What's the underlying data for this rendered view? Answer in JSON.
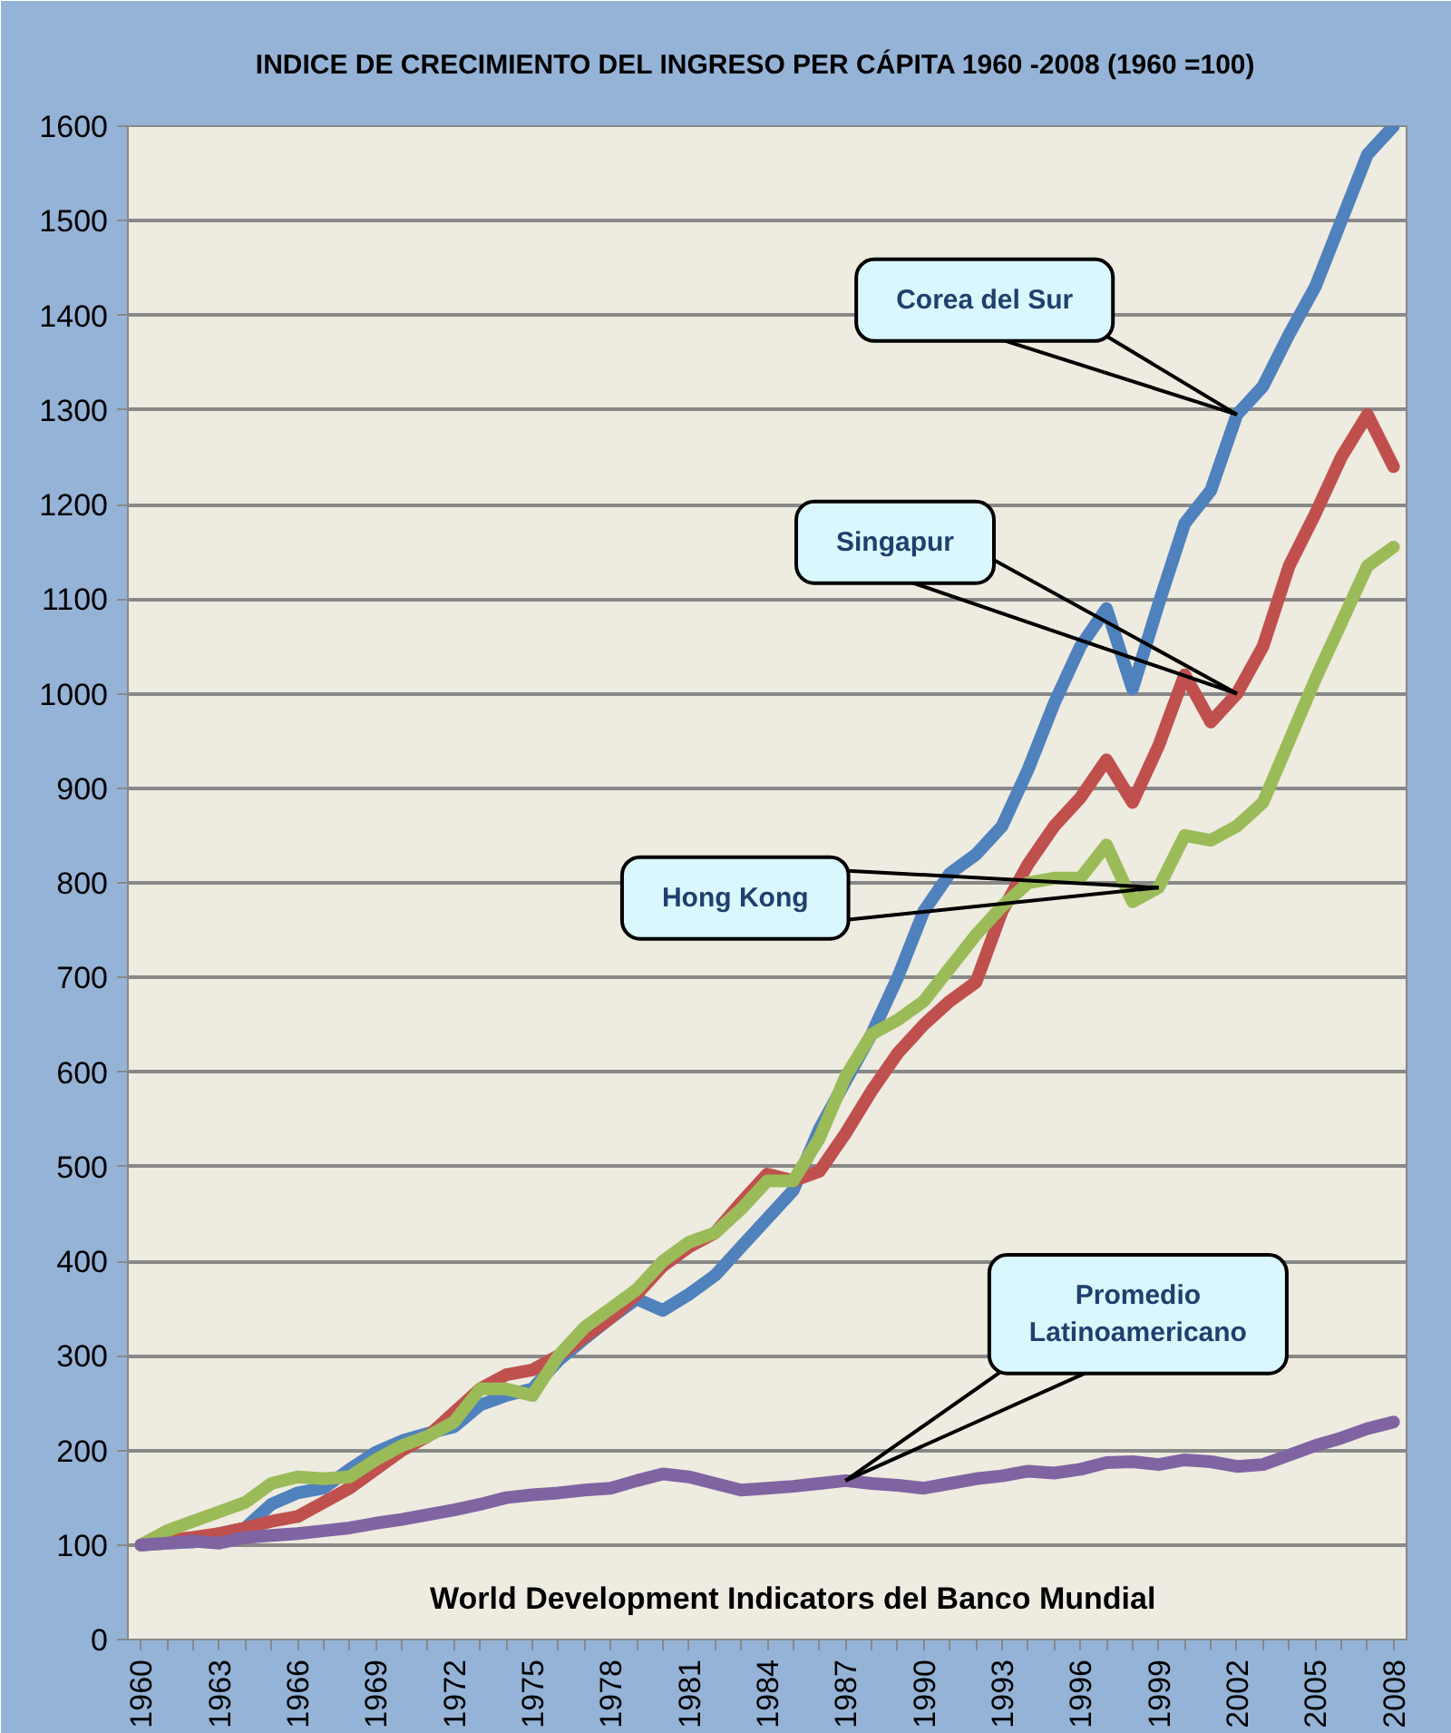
{
  "chart_data": {
    "type": "line",
    "title": "INDICE DE CRECIMIENTO  DEL INGRESO  PER CÁPITA  1960 -2008 (1960 =100)",
    "categories": [
      "1960",
      null,
      null,
      "1963",
      null,
      null,
      "1966",
      null,
      null,
      "1969",
      null,
      null,
      "1972",
      null,
      null,
      "1975",
      null,
      null,
      "1978",
      null,
      null,
      "1981",
      null,
      null,
      "1984",
      null,
      null,
      "1987",
      null,
      null,
      "1990",
      null,
      null,
      "1993",
      null,
      null,
      "1996",
      null,
      null,
      "1999",
      null,
      null,
      "2002",
      null,
      null,
      "2005",
      null,
      null,
      "2008"
    ],
    "series": [
      {
        "color": "#4f81bd",
        "values": [
          100,
          102,
          103,
          112,
          118,
          143,
          155,
          160,
          180,
          198,
          210,
          218,
          225,
          248,
          258,
          265,
          295,
          318,
          340,
          360,
          348,
          365,
          385,
          415,
          445,
          475,
          540,
          590,
          640,
          700,
          770,
          810,
          830,
          860,
          920,
          990,
          1050,
          1090,
          1005,
          1095,
          1180,
          1215,
          1295,
          1325,
          1380,
          1430,
          1500,
          1570,
          1600
        ]
      },
      {
        "color": "#c0504d",
        "values": [
          100,
          105,
          108,
          112,
          118,
          125,
          130,
          145,
          160,
          180,
          200,
          215,
          240,
          265,
          280,
          285,
          300,
          320,
          340,
          365,
          395,
          415,
          430,
          462,
          492,
          485,
          495,
          535,
          580,
          620,
          650,
          675,
          695,
          770,
          820,
          860,
          890,
          930,
          885,
          945,
          1020,
          970,
          1000,
          1050,
          1135,
          1190,
          1250,
          1295,
          1240
        ]
      },
      {
        "color": "#9bbb59",
        "values": [
          100,
          115,
          125,
          135,
          145,
          165,
          172,
          170,
          172,
          190,
          205,
          215,
          230,
          265,
          265,
          258,
          300,
          330,
          350,
          370,
          400,
          420,
          430,
          455,
          485,
          485,
          530,
          595,
          640,
          655,
          675,
          710,
          745,
          775,
          800,
          805,
          805,
          840,
          780,
          795,
          850,
          845,
          860,
          885,
          950,
          1015,
          1075,
          1135,
          1155
        ]
      },
      {
        "color": "#8064a2",
        "values": [
          100,
          102,
          104,
          102,
          108,
          110,
          112,
          115,
          118,
          123,
          127,
          132,
          137,
          143,
          150,
          153,
          155,
          158,
          160,
          168,
          175,
          172,
          165,
          158,
          160,
          162,
          165,
          168,
          165,
          163,
          160,
          165,
          170,
          173,
          178,
          176,
          180,
          187,
          188,
          185,
          190,
          188,
          183,
          185,
          195,
          205,
          213,
          223,
          230
        ]
      }
    ],
    "ylim": [
      0,
      1600
    ],
    "yticks": [
      0,
      100,
      200,
      300,
      400,
      500,
      600,
      700,
      800,
      900,
      1000,
      1100,
      1200,
      1300,
      1400,
      1500,
      1600
    ],
    "grid": "y",
    "marker": "none",
    "line_style": "solid",
    "annotations": [
      {
        "text": "Corea del Sur",
        "x": "2002",
        "y": 1295
      },
      {
        "text": "Singapur",
        "x": "2002",
        "y": 1000
      },
      {
        "text": "Hong Kong",
        "x": "1999",
        "y": 795
      },
      {
        "text": "Promedio Latinoamericano",
        "x": "1987",
        "y": 168
      },
      "World Development Indicators del Banco Mundial"
    ]
  }
}
